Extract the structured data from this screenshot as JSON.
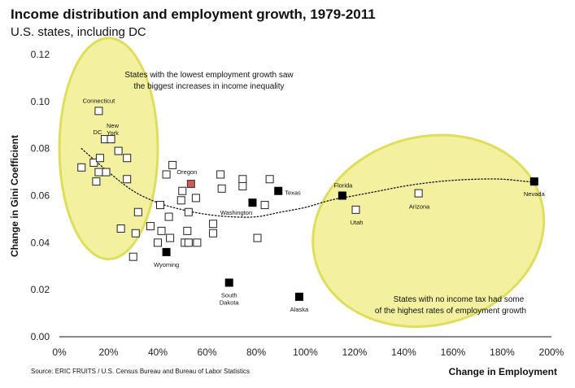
{
  "header": {
    "title": "Income distribution and employment growth, 1979-2011",
    "subtitle": "U.S. states, including DC"
  },
  "footer": {
    "source": "Source: ERIC FRUITS / U.S. Census Bureau and Bureau of Labor Statistics"
  },
  "colors": {
    "ellipse_fill": "#f3f1a0",
    "ellipse_stroke": "#dede5c",
    "marker_normal": "#ffffff",
    "marker_no_tax": "#000000",
    "marker_oregon": "#d05a55"
  },
  "chart_data": {
    "type": "scatter",
    "xlabel": "Change in Employment",
    "ylabel": "Change in Gini Coefficient",
    "xlim": [
      0,
      2.0
    ],
    "ylim": [
      0,
      0.12
    ],
    "x_ticks": [
      0,
      0.2,
      0.4,
      0.6,
      0.8,
      1.0,
      1.2,
      1.4,
      1.6,
      1.8,
      2.0
    ],
    "x_tick_labels": [
      "0%",
      "20%",
      "40%",
      "60%",
      "80%",
      "100%",
      "120%",
      "140%",
      "160%",
      "180%",
      "200%"
    ],
    "y_ticks": [
      0,
      0.02,
      0.04,
      0.06,
      0.08,
      0.1,
      0.12
    ],
    "y_tick_labels": [
      "0.00",
      "0.02",
      "0.04",
      "0.06",
      "0.08",
      "0.10",
      "0.12"
    ],
    "grid": false,
    "annotations": {
      "top_line1": "States with the lowest employment growth saw",
      "top_line2": "the biggest increases in income inequality",
      "bottom_line1": "States with no income tax had some",
      "bottom_line2": "of the highest rates of employment growth"
    },
    "points": [
      {
        "x": 0.09,
        "y": 0.072,
        "group": "normal",
        "label": ""
      },
      {
        "x": 0.14,
        "y": 0.074,
        "group": "normal",
        "label": ""
      },
      {
        "x": 0.15,
        "y": 0.066,
        "group": "normal",
        "label": ""
      },
      {
        "x": 0.16,
        "y": 0.096,
        "group": "normal",
        "label": "Connecticut"
      },
      {
        "x": 0.16,
        "y": 0.07,
        "group": "normal",
        "label": ""
      },
      {
        "x": 0.165,
        "y": 0.076,
        "group": "normal",
        "label": ""
      },
      {
        "x": 0.185,
        "y": 0.084,
        "group": "normal",
        "label": "DC"
      },
      {
        "x": 0.19,
        "y": 0.07,
        "group": "normal",
        "label": ""
      },
      {
        "x": 0.21,
        "y": 0.084,
        "group": "normal",
        "label": "New York"
      },
      {
        "x": 0.24,
        "y": 0.079,
        "group": "normal",
        "label": ""
      },
      {
        "x": 0.25,
        "y": 0.046,
        "group": "normal",
        "label": ""
      },
      {
        "x": 0.275,
        "y": 0.076,
        "group": "normal",
        "label": ""
      },
      {
        "x": 0.275,
        "y": 0.067,
        "group": "normal",
        "label": ""
      },
      {
        "x": 0.3,
        "y": 0.034,
        "group": "normal",
        "label": ""
      },
      {
        "x": 0.31,
        "y": 0.044,
        "group": "normal",
        "label": ""
      },
      {
        "x": 0.32,
        "y": 0.053,
        "group": "normal",
        "label": ""
      },
      {
        "x": 0.37,
        "y": 0.047,
        "group": "normal",
        "label": ""
      },
      {
        "x": 0.4,
        "y": 0.04,
        "group": "normal",
        "label": ""
      },
      {
        "x": 0.41,
        "y": 0.056,
        "group": "normal",
        "label": ""
      },
      {
        "x": 0.415,
        "y": 0.045,
        "group": "normal",
        "label": ""
      },
      {
        "x": 0.435,
        "y": 0.069,
        "group": "normal",
        "label": ""
      },
      {
        "x": 0.445,
        "y": 0.051,
        "group": "normal",
        "label": ""
      },
      {
        "x": 0.45,
        "y": 0.042,
        "group": "normal",
        "label": ""
      },
      {
        "x": 0.46,
        "y": 0.073,
        "group": "normal",
        "label": ""
      },
      {
        "x": 0.495,
        "y": 0.058,
        "group": "normal",
        "label": ""
      },
      {
        "x": 0.5,
        "y": 0.062,
        "group": "normal",
        "label": ""
      },
      {
        "x": 0.51,
        "y": 0.04,
        "group": "normal",
        "label": ""
      },
      {
        "x": 0.52,
        "y": 0.045,
        "group": "normal",
        "label": ""
      },
      {
        "x": 0.525,
        "y": 0.04,
        "group": "normal",
        "label": ""
      },
      {
        "x": 0.525,
        "y": 0.053,
        "group": "normal",
        "label": ""
      },
      {
        "x": 0.535,
        "y": 0.065,
        "group": "oregon",
        "label": "Oregon"
      },
      {
        "x": 0.555,
        "y": 0.059,
        "group": "normal",
        "label": ""
      },
      {
        "x": 0.56,
        "y": 0.04,
        "group": "normal",
        "label": ""
      },
      {
        "x": 0.625,
        "y": 0.044,
        "group": "normal",
        "label": ""
      },
      {
        "x": 0.625,
        "y": 0.048,
        "group": "normal",
        "label": ""
      },
      {
        "x": 0.655,
        "y": 0.069,
        "group": "normal",
        "label": ""
      },
      {
        "x": 0.66,
        "y": 0.063,
        "group": "normal",
        "label": ""
      },
      {
        "x": 0.745,
        "y": 0.067,
        "group": "normal",
        "label": ""
      },
      {
        "x": 0.745,
        "y": 0.064,
        "group": "normal",
        "label": ""
      },
      {
        "x": 0.805,
        "y": 0.042,
        "group": "normal",
        "label": ""
      },
      {
        "x": 0.835,
        "y": 0.056,
        "group": "normal",
        "label": ""
      },
      {
        "x": 0.855,
        "y": 0.067,
        "group": "normal",
        "label": ""
      },
      {
        "x": 1.205,
        "y": 0.054,
        "group": "normal",
        "label": "Utah"
      },
      {
        "x": 1.46,
        "y": 0.061,
        "group": "normal",
        "label": "Arizona"
      },
      {
        "x": 0.435,
        "y": 0.036,
        "group": "no_tax",
        "label": "Wyoming"
      },
      {
        "x": 0.69,
        "y": 0.023,
        "group": "no_tax",
        "label": "South Dakota"
      },
      {
        "x": 0.785,
        "y": 0.057,
        "group": "no_tax",
        "label": "Washington"
      },
      {
        "x": 0.89,
        "y": 0.062,
        "group": "no_tax",
        "label": "Texas"
      },
      {
        "x": 0.975,
        "y": 0.017,
        "group": "no_tax",
        "label": "Alaska"
      },
      {
        "x": 1.15,
        "y": 0.06,
        "group": "no_tax",
        "label": "Florida"
      },
      {
        "x": 1.93,
        "y": 0.066,
        "group": "no_tax",
        "label": "Nevada"
      }
    ],
    "trendline": {
      "style": "dotted",
      "x": [
        0.09,
        0.2,
        0.3,
        0.4,
        0.5,
        0.6,
        0.7,
        0.8,
        0.9,
        1.0,
        1.1,
        1.2,
        1.3,
        1.4,
        1.5,
        1.6,
        1.7,
        1.8,
        1.9,
        1.93
      ],
      "y": [
        0.08,
        0.07,
        0.062,
        0.057,
        0.054,
        0.052,
        0.051,
        0.051,
        0.053,
        0.055,
        0.058,
        0.06,
        0.062,
        0.064,
        0.0655,
        0.0665,
        0.067,
        0.067,
        0.066,
        0.066
      ]
    },
    "highlight_regions": [
      {
        "name": "low-growth",
        "cx": 0.2,
        "cy": 0.08,
        "rx": 0.4,
        "ry": 0.047
      },
      {
        "name": "no-income-tax",
        "cx": 1.5,
        "cy": 0.045,
        "rx": 0.95,
        "ry": 0.04
      }
    ]
  }
}
